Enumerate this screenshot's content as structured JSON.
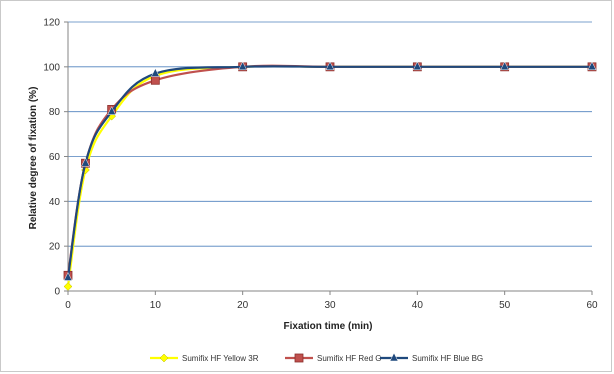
{
  "chart_data": {
    "type": "line",
    "title": "",
    "xlabel": "Fixation time (min)",
    "ylabel": "Relative degree of fixation (%)",
    "xlim": [
      0,
      60
    ],
    "ylim": [
      0,
      120
    ],
    "xticks": [
      0,
      10,
      20,
      30,
      40,
      50,
      60
    ],
    "yticks": [
      0,
      20,
      40,
      60,
      80,
      100,
      120
    ],
    "grid": "horizontal",
    "legend_position": "bottom",
    "x": [
      0,
      2,
      5,
      10,
      20,
      30,
      40,
      50,
      60
    ],
    "series": [
      {
        "name": "Sumifix HF Yellow 3R",
        "color": "#ffff00",
        "marker": "diamond",
        "values": [
          2,
          54,
          78,
          96,
          100,
          100,
          100,
          100,
          100
        ]
      },
      {
        "name": "Sumifix HF Red G",
        "color": "#c0504d",
        "marker": "square",
        "values": [
          7,
          57,
          81,
          94,
          100,
          100,
          100,
          100,
          100
        ]
      },
      {
        "name": "Sumifix HF Blue BG",
        "color": "#1f497d",
        "marker": "triangle",
        "values": [
          6,
          57,
          80,
          97,
          100,
          100,
          100,
          100,
          100
        ]
      }
    ]
  }
}
